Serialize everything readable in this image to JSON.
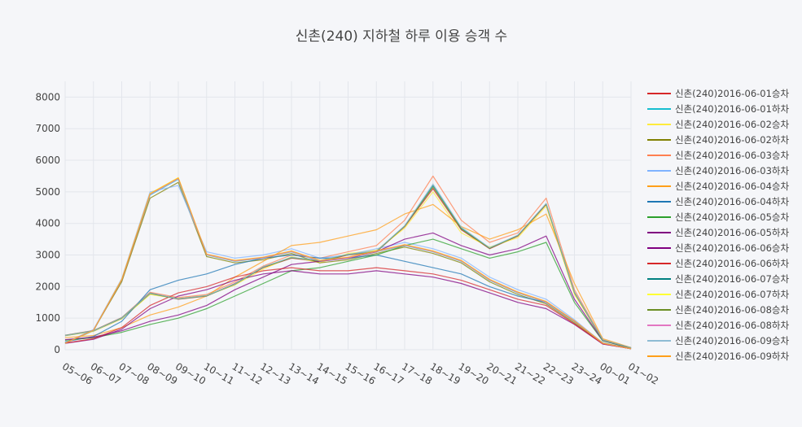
{
  "colors": {
    "background": "#f5f6f9",
    "grid": "#e3e6ec",
    "palette": [
      "#d62728",
      "#17becf",
      "#ffeb3b",
      "#808000",
      "#ff7f50",
      "#7fb3ff",
      "#ff9f1a",
      "#1f77b4",
      "#2ca02c",
      "#800080",
      "#800080",
      "#d62728",
      "#008080",
      "#ffff33",
      "#6b8e23",
      "#e377c2",
      "#8fbcd4",
      "#ff9f1a"
    ]
  },
  "chart_data": {
    "type": "line",
    "title": "신촌(240) 지하철 하루 이용 승객 수",
    "xlabel": "",
    "ylabel": "",
    "x": [
      "05~06",
      "06~07",
      "07~08",
      "08~09",
      "09~10",
      "10~11",
      "11~12",
      "12~13",
      "13~14",
      "14~15",
      "15~16",
      "16~17",
      "17~18",
      "18~19",
      "19~20",
      "20~21",
      "21~22",
      "22~23",
      "23~24",
      "00~01",
      "01~02"
    ],
    "ylim": [
      0,
      8500
    ],
    "yticks": [
      0,
      1000,
      2000,
      3000,
      4000,
      5000,
      6000,
      7000,
      8000
    ],
    "ytick_labels": [
      "0",
      "1000",
      "2000",
      "3000",
      "4000",
      "5000",
      "6000",
      "7000",
      "8000"
    ],
    "grid": true,
    "legend_position": "right",
    "series": [
      {
        "name": "신촌(240)2016-06-01승차",
        "values": [
          450,
          600,
          1000,
          1800,
          1600,
          1700,
          2100,
          2600,
          2900,
          2800,
          3000,
          3100,
          3900,
          5100,
          3800,
          3200,
          3600,
          4600,
          1800,
          300,
          60
        ]
      },
      {
        "name": "신촌(240)2016-06-01하차",
        "values": [
          200,
          600,
          2200,
          4900,
          5400,
          3000,
          2800,
          2900,
          3100,
          2800,
          2900,
          3100,
          3300,
          3100,
          2800,
          2200,
          1800,
          1500,
          900,
          200,
          30
        ]
      },
      {
        "name": "신촌(240)2016-06-02승차",
        "values": [
          440,
          580,
          980,
          1750,
          1620,
          1720,
          2050,
          2550,
          2950,
          2750,
          3050,
          3150,
          3850,
          5000,
          3700,
          3250,
          3550,
          4550,
          1750,
          310,
          55
        ]
      },
      {
        "name": "신촌(240)2016-06-02하차",
        "values": [
          210,
          620,
          2150,
          4800,
          5300,
          2950,
          2750,
          2850,
          3050,
          2750,
          2850,
          3050,
          3250,
          3050,
          2750,
          2150,
          1750,
          1450,
          850,
          190,
          30
        ]
      },
      {
        "name": "신촌(240)2016-06-03승차",
        "values": [
          460,
          610,
          1020,
          1820,
          1650,
          1750,
          2150,
          2650,
          3000,
          2900,
          3100,
          3300,
          4100,
          5500,
          4100,
          3400,
          3700,
          4800,
          1900,
          320,
          65
        ]
      },
      {
        "name": "신촌(240)2016-06-03하차",
        "values": [
          220,
          640,
          2250,
          5000,
          5200,
          3100,
          2900,
          3000,
          3200,
          2900,
          3000,
          3200,
          3400,
          3200,
          2900,
          2300,
          1900,
          1600,
          950,
          210,
          35
        ]
      },
      {
        "name": "신촌(240)2016-06-04승차",
        "values": [
          380,
          450,
          700,
          1100,
          1350,
          1700,
          2300,
          2800,
          3300,
          3400,
          3600,
          3800,
          4300,
          4600,
          3900,
          3500,
          3800,
          4300,
          2100,
          350,
          70
        ]
      },
      {
        "name": "신촌(240)2016-06-04하차",
        "values": [
          250,
          420,
          900,
          1900,
          2200,
          2400,
          2700,
          2900,
          3000,
          2900,
          2900,
          3000,
          2800,
          2600,
          2400,
          2000,
          1700,
          1500,
          900,
          220,
          35
        ]
      },
      {
        "name": "신촌(240)2016-06-05승차",
        "values": [
          300,
          380,
          550,
          800,
          1000,
          1300,
          1700,
          2100,
          2500,
          2600,
          2800,
          3000,
          3300,
          3500,
          3200,
          2900,
          3100,
          3400,
          1500,
          280,
          50
        ]
      },
      {
        "name": "신촌(240)2016-06-05하차",
        "values": [
          200,
          330,
          650,
          1300,
          1700,
          1900,
          2200,
          2400,
          2500,
          2400,
          2400,
          2500,
          2400,
          2300,
          2100,
          1800,
          1500,
          1300,
          800,
          180,
          30
        ]
      },
      {
        "name": "신촌(240)2016-06-06승차",
        "values": [
          320,
          400,
          600,
          900,
          1100,
          1400,
          1900,
          2300,
          2700,
          2800,
          2900,
          3100,
          3500,
          3700,
          3300,
          3000,
          3200,
          3600,
          1600,
          290,
          55
        ]
      },
      {
        "name": "신촌(240)2016-06-06하차",
        "values": [
          210,
          350,
          700,
          1400,
          1800,
          2000,
          2300,
          2500,
          2600,
          2500,
          2500,
          2600,
          2500,
          2400,
          2200,
          1900,
          1600,
          1400,
          820,
          190,
          30
        ]
      },
      {
        "name": "신촌(240)2016-06-07승차",
        "values": [
          455,
          600,
          1010,
          1790,
          1610,
          1710,
          2080,
          2620,
          2920,
          2820,
          3020,
          3120,
          3920,
          5200,
          3850,
          3220,
          3620,
          4620,
          1820,
          305,
          60
        ]
      },
      {
        "name": "신촌(240)2016-06-07하차",
        "values": [
          205,
          610,
          2230,
          4950,
          5450,
          3020,
          2820,
          2920,
          3120,
          2820,
          2920,
          3120,
          3320,
          3120,
          2820,
          2220,
          1820,
          1520,
          910,
          205,
          32
        ]
      },
      {
        "name": "신촌(240)2016-06-08승차",
        "values": [
          448,
          595,
          995,
          1780,
          1605,
          1705,
          2070,
          2610,
          2910,
          2810,
          3010,
          3110,
          3910,
          5150,
          3820,
          3210,
          3610,
          4610,
          1810,
          302,
          58
        ]
      },
      {
        "name": "신촌(240)2016-06-08하차",
        "values": [
          208,
          615,
          2210,
          4920,
          5420,
          3010,
          2810,
          2910,
          3110,
          2810,
          2910,
          3110,
          3310,
          3110,
          2810,
          2210,
          1810,
          1510,
          905,
          202,
          31
        ]
      },
      {
        "name": "신촌(240)2016-06-09승차",
        "values": [
          452,
          598,
          1005,
          1795,
          1615,
          1715,
          2085,
          2625,
          2925,
          2825,
          3025,
          3125,
          3925,
          5250,
          3880,
          3230,
          3630,
          4630,
          1830,
          308,
          61
        ]
      },
      {
        "name": "신촌(240)2016-06-09하차",
        "values": [
          212,
          618,
          2220,
          4940,
          5440,
          3030,
          2830,
          2930,
          3130,
          2830,
          2930,
          3130,
          3330,
          3130,
          2830,
          2230,
          1830,
          1530,
          915,
          208,
          33
        ]
      }
    ]
  }
}
